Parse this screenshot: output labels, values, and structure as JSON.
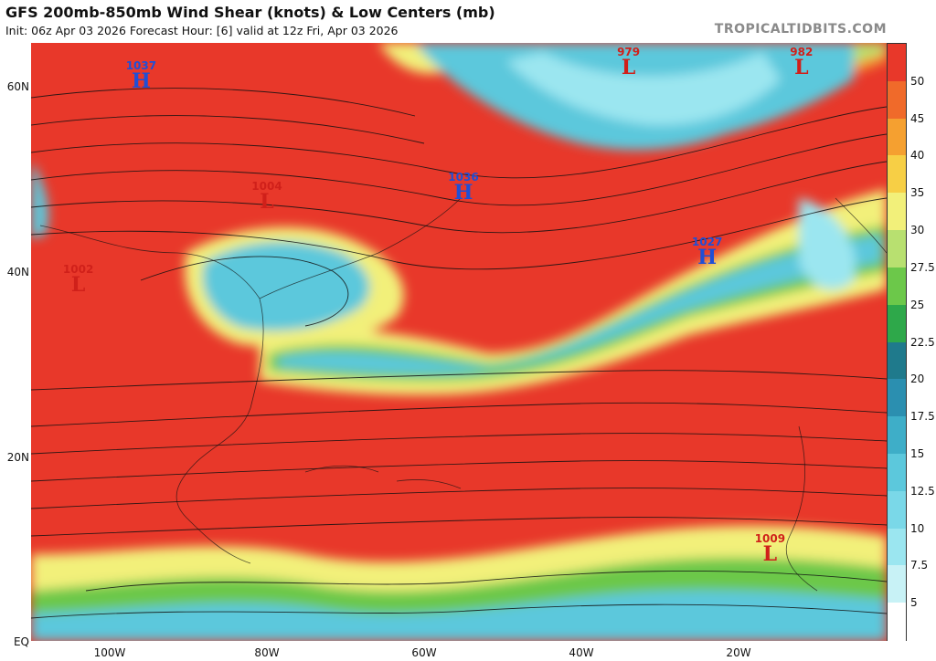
{
  "header": {
    "title": "GFS 200mb-850mb Wind Shear (knots) & Low Centers (mb)",
    "subtitle": "Init: 06z Apr 03 2026   Forecast Hour: [6]   valid at 12z Fri, Apr 03 2026",
    "brand": "TROPICALTIDBITS.COM"
  },
  "axes": {
    "lat_labels": [
      "60N",
      "40N",
      "20N",
      "EQ"
    ],
    "lon_labels": [
      "100W",
      "80W",
      "60W",
      "40W",
      "20W"
    ]
  },
  "colorbar": {
    "labels": [
      "50",
      "45",
      "40",
      "35",
      "30",
      "27.5",
      "25",
      "22.5",
      "20",
      "17.5",
      "15",
      "12.5",
      "10",
      "7.5",
      "5"
    ],
    "colors": [
      "#e8382a",
      "#f06a2a",
      "#f5a030",
      "#f7cf45",
      "#f2f07a",
      "#b8e070",
      "#6cc84a",
      "#2ea84a",
      "#1f7a8c",
      "#2b8fb0",
      "#3eaec8",
      "#5cc8dc",
      "#7ad8e8",
      "#9be6f0",
      "#c8f2f6",
      "#ffffff"
    ]
  },
  "pressure_centers": [
    {
      "type": "H",
      "value": "1037",
      "lon": -96,
      "lat": 61
    },
    {
      "type": "H",
      "value": "1036",
      "lon": -55,
      "lat": 49
    },
    {
      "type": "H",
      "value": "1027",
      "lon": -24,
      "lat": 42
    },
    {
      "type": "L",
      "value": "979",
      "lon": -34,
      "lat": 62.5
    },
    {
      "type": "L",
      "value": "982",
      "lon": -12,
      "lat": 62.5
    },
    {
      "type": "L",
      "value": "1004",
      "lon": -80,
      "lat": 48
    },
    {
      "type": "L",
      "value": "1002",
      "lon": -104,
      "lat": 39
    },
    {
      "type": "L",
      "value": "1009",
      "lon": -16,
      "lat": 10
    }
  ]
}
